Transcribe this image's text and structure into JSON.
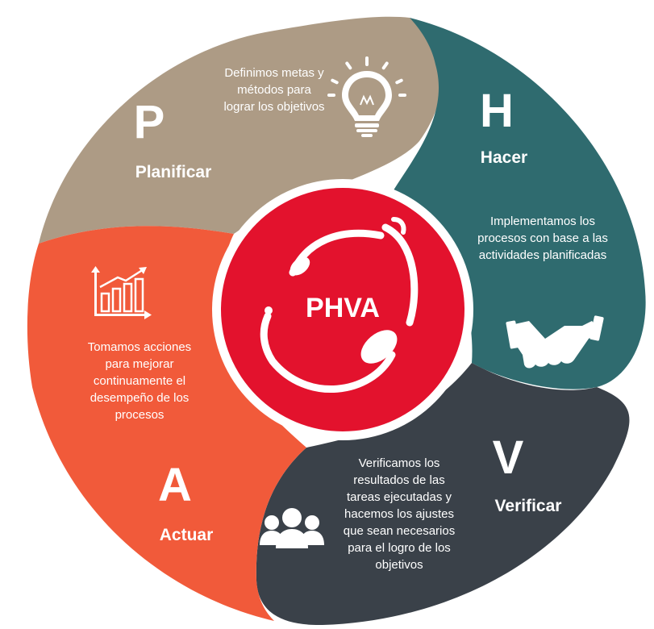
{
  "center": {
    "label": "PHVA"
  },
  "colors": {
    "planificar": "#ad9b85",
    "hacer": "#2f6b6f",
    "verificar": "#3a4149",
    "actuar": "#f15a3a",
    "center": "#e3122d",
    "text": "#ffffff"
  },
  "segments": {
    "planificar": {
      "letter": "P",
      "name": "Planificar",
      "icon": "lightbulb-icon",
      "lines": [
        "Definimos metas y",
        "métodos para",
        "lograr los objetivos"
      ]
    },
    "hacer": {
      "letter": "H",
      "name": "Hacer",
      "icon": "handshake-icon",
      "lines": [
        "Implementamos los",
        "procesos con base a las",
        "actividades planificadas"
      ]
    },
    "verificar": {
      "letter": "V",
      "name": "Verificar",
      "icon": "people-icon",
      "lines": [
        "Verificamos los",
        "resultados de las",
        "tareas ejecutadas y",
        "hacemos los ajustes",
        "que sean necesarios",
        "para el logro de los",
        "objetivos"
      ]
    },
    "actuar": {
      "letter": "A",
      "name": "Actuar",
      "icon": "growth-chart-icon",
      "lines": [
        "Tomamos acciones",
        "para mejorar",
        "continuamente el",
        "desempeño de los",
        "procesos"
      ]
    }
  }
}
